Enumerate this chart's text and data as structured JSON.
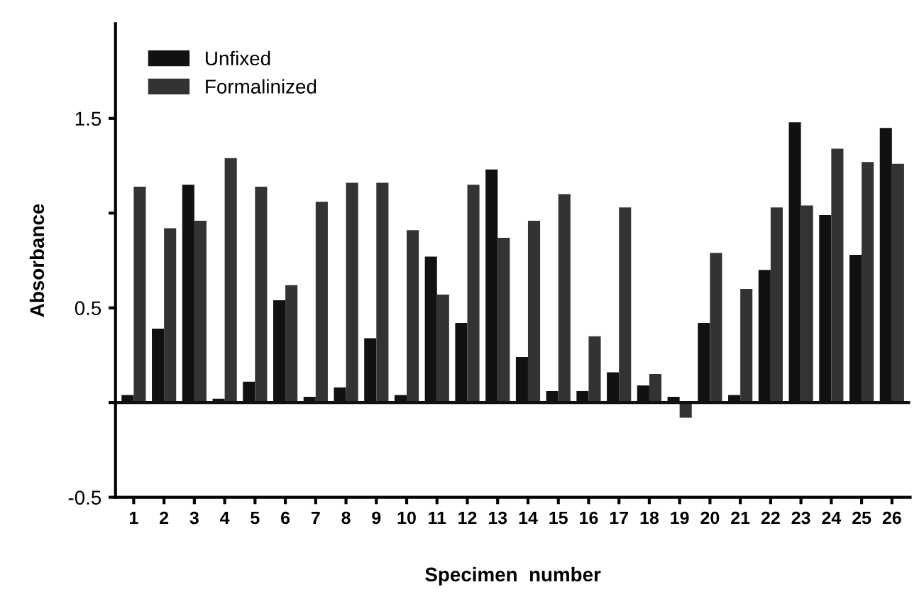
{
  "chart_data": {
    "type": "bar",
    "xlabel": "Specimen  number",
    "ylabel": "Absorbance",
    "categories": [
      "1",
      "2",
      "3",
      "4",
      "5",
      "6",
      "7",
      "8",
      "9",
      "10",
      "11",
      "12",
      "13",
      "14",
      "15",
      "16",
      "17",
      "18",
      "19",
      "20",
      "21",
      "22",
      "23",
      "24",
      "25",
      "26"
    ],
    "series": [
      {
        "name": "Unfixed",
        "color": "#111111",
        "values": [
          0.04,
          0.39,
          1.15,
          0.02,
          0.11,
          0.54,
          0.03,
          0.08,
          0.34,
          0.04,
          0.77,
          0.42,
          1.23,
          0.24,
          0.06,
          0.06,
          0.16,
          0.09,
          0.03,
          0.42,
          0.04,
          0.7,
          1.48,
          0.99,
          0.78,
          1.45
        ]
      },
      {
        "name": "Formalinized",
        "color": "#333333",
        "values": [
          1.14,
          0.92,
          0.96,
          1.29,
          1.14,
          0.62,
          1.06,
          1.16,
          1.16,
          0.91,
          0.57,
          1.15,
          0.87,
          0.96,
          1.1,
          0.35,
          1.03,
          0.15,
          -0.08,
          0.79,
          0.6,
          1.03,
          1.04,
          1.34,
          1.27,
          1.26
        ]
      }
    ],
    "ylim": [
      -0.5,
      2.0
    ],
    "yticks": [
      -0.5,
      {
        "value": 0,
        "label": null
      },
      0.5,
      {
        "value": 1.0,
        "label": null
      },
      1.5
    ],
    "ref_lines": [
      {
        "axis": "y",
        "value": 0,
        "label": null,
        "color": "#111111"
      }
    ],
    "legend": "top left",
    "grid": false
  }
}
